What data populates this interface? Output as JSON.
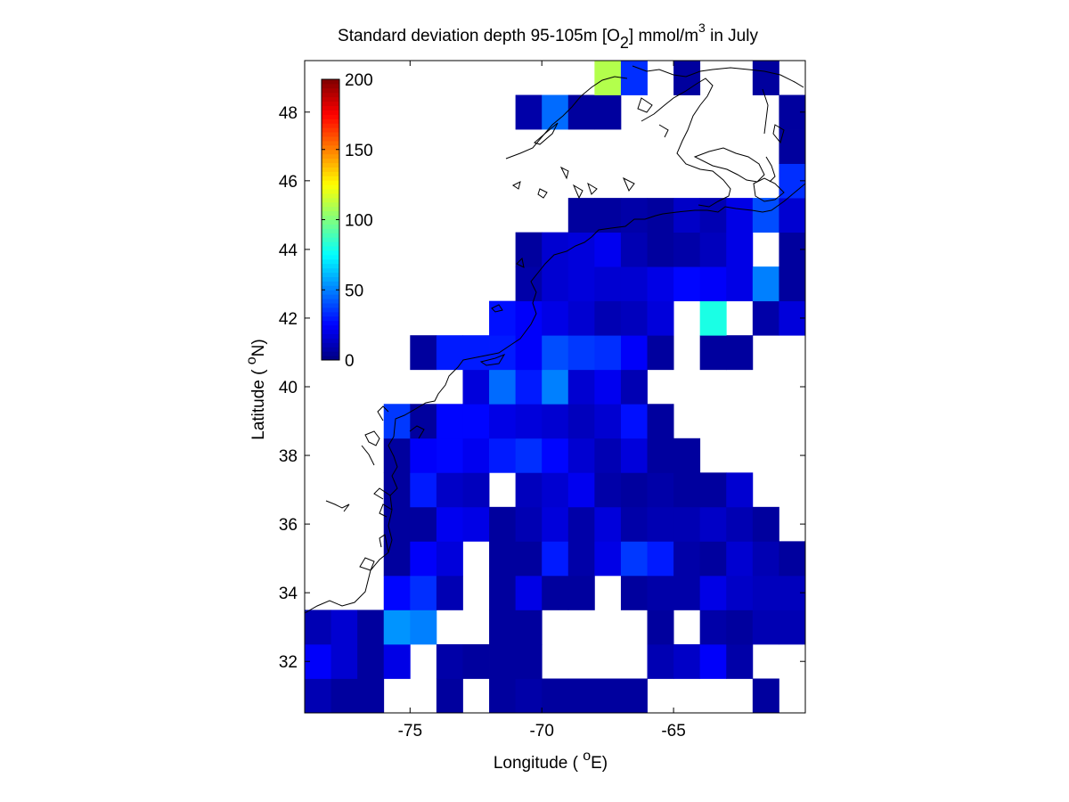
{
  "chart_data": {
    "type": "heatmap",
    "title_parts": {
      "a": "Standard deviation depth 95-105m [O",
      "sub": "2",
      "b": "] mmol/m",
      "sup": "3",
      "c": " in July"
    },
    "xlabel_parts": {
      "pre": "Longitude ( ",
      "sup": "o",
      "post": "E)"
    },
    "ylabel_parts": {
      "pre": "Latitude ( ",
      "sup": "o",
      "post": "N)"
    },
    "xlim": [
      -79,
      -60
    ],
    "ylim": [
      30.5,
      49.5
    ],
    "xticks": [
      -75,
      -70,
      -65
    ],
    "yticks": [
      32,
      34,
      36,
      38,
      40,
      42,
      44,
      46,
      48
    ],
    "xtick_labels": [
      "-75",
      "-70",
      "-65"
    ],
    "ytick_labels": [
      "32",
      "34",
      "36",
      "38",
      "40",
      "42",
      "44",
      "46",
      "48"
    ],
    "colorbar": {
      "colormap": "jet",
      "range": [
        0,
        200
      ],
      "ticks": [
        0,
        50,
        100,
        150,
        200
      ],
      "tick_labels": [
        "0",
        "50",
        "100",
        "150",
        "200"
      ]
    },
    "grid": {
      "lon_west_edges": [
        -79,
        -78,
        -77,
        -76,
        -75,
        -74,
        -73,
        -72,
        -71,
        -70,
        -69,
        -68,
        -67,
        -66,
        -65,
        -64,
        -63,
        -62,
        -61
      ],
      "lat_centers": [
        31,
        32,
        33,
        34,
        35,
        36,
        37,
        38,
        39,
        40,
        41,
        42,
        43,
        44,
        45,
        46,
        47,
        48,
        49
      ],
      "values": [
        [
          10,
          6,
          6,
          null,
          null,
          6,
          null,
          6,
          8,
          6,
          6,
          6,
          6,
          null,
          null,
          null,
          null,
          6,
          null
        ],
        [
          24,
          16,
          6,
          20,
          null,
          8,
          6,
          6,
          6,
          null,
          null,
          null,
          null,
          10,
          14,
          24,
          8,
          null,
          null
        ],
        [
          10,
          16,
          6,
          54,
          50,
          null,
          null,
          6,
          6,
          null,
          null,
          null,
          null,
          6,
          null,
          8,
          6,
          10,
          10
        ],
        [
          null,
          null,
          null,
          26,
          34,
          10,
          null,
          6,
          20,
          6,
          6,
          null,
          6,
          8,
          8,
          20,
          14,
          12,
          12
        ],
        [
          null,
          null,
          null,
          6,
          24,
          18,
          null,
          6,
          6,
          30,
          8,
          20,
          36,
          30,
          8,
          6,
          16,
          10,
          6
        ],
        [
          null,
          null,
          null,
          6,
          6,
          22,
          20,
          6,
          10,
          18,
          8,
          18,
          8,
          10,
          10,
          14,
          10,
          6,
          null
        ],
        [
          null,
          null,
          null,
          6,
          30,
          14,
          12,
          null,
          12,
          16,
          22,
          8,
          6,
          8,
          6,
          6,
          16,
          null,
          null
        ],
        [
          null,
          null,
          null,
          6,
          24,
          26,
          22,
          30,
          34,
          26,
          16,
          10,
          18,
          6,
          6,
          null,
          null,
          null,
          null
        ],
        [
          null,
          null,
          null,
          36,
          6,
          26,
          26,
          20,
          18,
          16,
          12,
          16,
          28,
          6,
          null,
          null,
          null,
          null,
          null
        ],
        [
          null,
          null,
          null,
          null,
          null,
          null,
          18,
          46,
          30,
          50,
          16,
          22,
          10,
          null,
          null,
          null,
          null,
          null,
          null
        ],
        [
          null,
          null,
          null,
          null,
          6,
          30,
          30,
          30,
          24,
          40,
          36,
          34,
          24,
          6,
          null,
          6,
          6,
          null,
          null
        ],
        [
          null,
          null,
          null,
          null,
          null,
          null,
          null,
          28,
          24,
          20,
          16,
          10,
          12,
          18,
          null,
          80,
          null,
          8,
          18
        ],
        [
          null,
          null,
          null,
          null,
          null,
          null,
          null,
          null,
          8,
          16,
          18,
          16,
          16,
          20,
          26,
          24,
          20,
          50,
          6
        ],
        [
          null,
          null,
          null,
          null,
          null,
          null,
          null,
          null,
          6,
          16,
          18,
          22,
          10,
          6,
          8,
          12,
          20,
          null,
          6
        ],
        [
          null,
          null,
          null,
          null,
          null,
          null,
          null,
          null,
          null,
          null,
          6,
          6,
          8,
          6,
          14,
          10,
          20,
          40,
          16
        ],
        [
          null,
          null,
          null,
          null,
          null,
          null,
          null,
          null,
          null,
          null,
          null,
          null,
          null,
          null,
          null,
          null,
          null,
          null,
          34
        ],
        [
          null,
          null,
          null,
          null,
          null,
          null,
          null,
          null,
          null,
          null,
          null,
          null,
          null,
          null,
          null,
          null,
          null,
          null,
          6
        ],
        [
          null,
          null,
          null,
          null,
          null,
          null,
          null,
          null,
          8,
          46,
          6,
          6,
          null,
          null,
          null,
          null,
          null,
          null,
          6
        ],
        [
          null,
          null,
          null,
          null,
          null,
          null,
          null,
          null,
          null,
          null,
          null,
          110,
          34,
          null,
          6,
          null,
          null,
          6,
          null
        ]
      ]
    }
  }
}
